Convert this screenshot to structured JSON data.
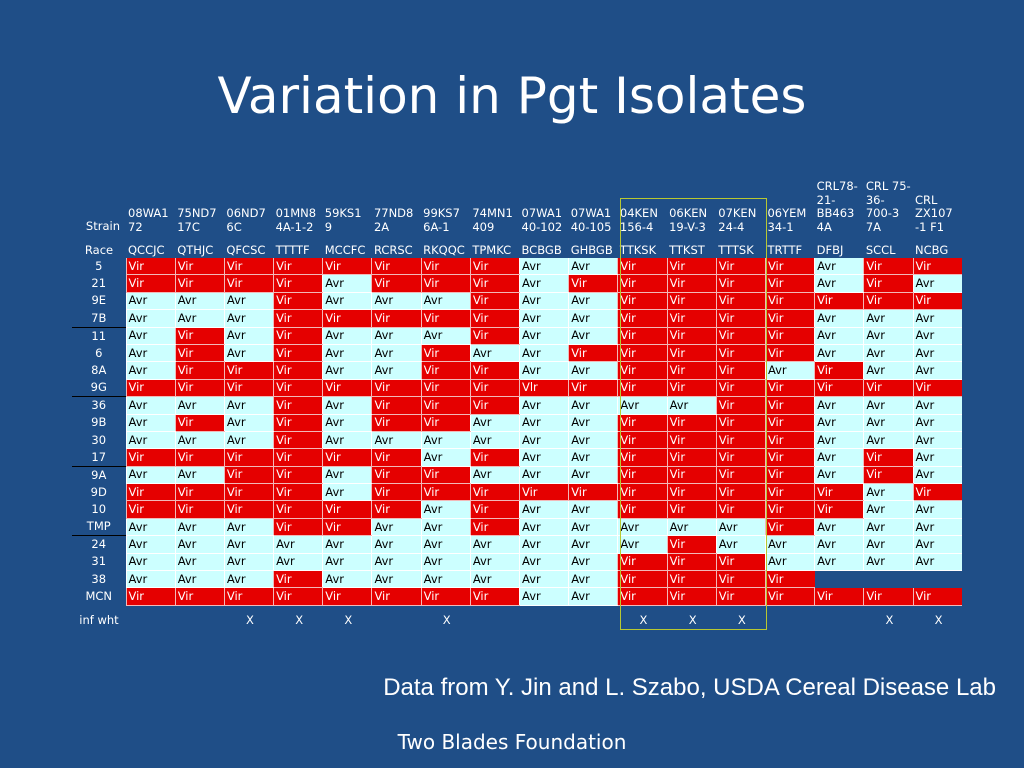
{
  "slide": {
    "title": "Variation in Pgt Isolates",
    "credit": "Data from Y. Jin and L. Szabo, USDA Cereal Disease Lab",
    "footer": "Two Blades Foundation"
  },
  "colors": {
    "background": "#1f4e87",
    "vir": "#e50000",
    "avr": "#ccffff",
    "highlight": "#b8c832"
  },
  "table": {
    "strain_label": "Strain",
    "race_label": "Race",
    "inf_label": "inf wht",
    "strains": [
      "08WA1 72",
      "75ND7 17C",
      "06ND7 6C",
      "01MN8 4A-1-2",
      "59KS1 9",
      "77ND8 2A",
      "99KS7 6A-1",
      "74MN1 409",
      "07WA1 40-102",
      "07WA1 40-105",
      "04KEN 156-4",
      "06KEN 19-V-3",
      "07KEN 24-4",
      "06YEM 34-1",
      "CRL78- 21- BB463 4A",
      "CRL 75-36- 700-3 7A",
      "CRL ZX107 -1 F1"
    ],
    "races": [
      "QCCJC",
      "QTHJC",
      "QFCSC",
      "TTTTF",
      "MCCFC",
      "RCRSC",
      "RKQQC",
      "TPMKC",
      "BCBGB",
      "GHBGB",
      "TTKSK",
      "TTKST",
      "TTTSK",
      "TRTTF",
      "DFBJ",
      "SCCL",
      "NCBG"
    ],
    "rows": [
      {
        "label": "5",
        "sep": false,
        "values": [
          "Vir",
          "Vir",
          "Vir",
          "Vir",
          "Vir",
          "Vir",
          "Vir",
          "Vir",
          "Avr",
          "Avr",
          "Vir",
          "Vir",
          "Vir",
          "Vir",
          "Avr",
          "Vir",
          "Vir"
        ]
      },
      {
        "label": "21",
        "sep": false,
        "values": [
          "Vir",
          "Vir",
          "Vir",
          "Vir",
          "Avr",
          "Vir",
          "Vir",
          "Vir",
          "Avr",
          "Vir",
          "Vir",
          "Vir",
          "Vir",
          "Vir",
          "Avr",
          "Vir",
          "Avr"
        ]
      },
      {
        "label": "9E",
        "sep": false,
        "values": [
          "Avr",
          "Avr",
          "Avr",
          "Vir",
          "Avr",
          "Avr",
          "Avr",
          "Vir",
          "Avr",
          "Avr",
          "Vir",
          "Vir",
          "Vir",
          "Vir",
          "Vir",
          "Vir",
          "Vir"
        ]
      },
      {
        "label": "7B",
        "sep": false,
        "values": [
          "Avr",
          "Avr",
          "Avr",
          "Vir",
          "Vir",
          "Vir",
          "Vir",
          "Vir",
          "Avr",
          "Avr",
          "Vir",
          "Vir",
          "Vir",
          "Vir",
          "Avr",
          "Avr",
          "Avr"
        ]
      },
      {
        "label": "11",
        "sep": true,
        "values": [
          "Avr",
          "Vir",
          "Avr",
          "Vir",
          "Avr",
          "Avr",
          "Avr",
          "Vir",
          "Avr",
          "Avr",
          "Vir",
          "Vir",
          "Vir",
          "Vir",
          "Avr",
          "Avr",
          "Avr"
        ]
      },
      {
        "label": "6",
        "sep": false,
        "values": [
          "Avr",
          "Vir",
          "Avr",
          "Vir",
          "Avr",
          "Avr",
          "Vir",
          "Avr",
          "Avr",
          "Vir",
          "Vir",
          "Vir",
          "Vir",
          "Vir",
          "Avr",
          "Avr",
          "Avr"
        ]
      },
      {
        "label": "8A",
        "sep": false,
        "values": [
          "Avr",
          "Vir",
          "Vir",
          "Vir",
          "Avr",
          "Avr",
          "Vir",
          "Vir",
          "Avr",
          "Avr",
          "Vir",
          "Vir",
          "Vir",
          "Avr",
          "Vir",
          "Avr",
          "Avr"
        ]
      },
      {
        "label": "9G",
        "sep": false,
        "values": [
          "Vir",
          "Vir",
          "Vir",
          "Vir",
          "Vir",
          "Vir",
          "Vir",
          "Vir",
          "Vlr",
          "Vir",
          "Vir",
          "Vir",
          "Vir",
          "Vir",
          "Vir",
          "Vir",
          "Vir"
        ]
      },
      {
        "label": "36",
        "sep": true,
        "values": [
          "Avr",
          "Avr",
          "Avr",
          "Vir",
          "Avr",
          "Vir",
          "Vir",
          "Vir",
          "Avr",
          "Avr",
          "Avr",
          "Avr",
          "Vir",
          "Vir",
          "Avr",
          "Avr",
          "Avr"
        ]
      },
      {
        "label": "9B",
        "sep": false,
        "values": [
          "Avr",
          "Vir",
          "Avr",
          "Vir",
          "Avr",
          "Vir",
          "Vir",
          "Avr",
          "Avr",
          "Avr",
          "Vir",
          "Vir",
          "Vir",
          "Vir",
          "Avr",
          "Avr",
          "Avr"
        ]
      },
      {
        "label": "30",
        "sep": false,
        "values": [
          "Avr",
          "Avr",
          "Avr",
          "Vir",
          "Avr",
          "Avr",
          "Avr",
          "Avr",
          "Avr",
          "Avr",
          "Vir",
          "Vir",
          "Vir",
          "Vir",
          "Avr",
          "Avr",
          "Avr"
        ]
      },
      {
        "label": "17",
        "sep": false,
        "values": [
          "Vir",
          "Vir",
          "Vir",
          "Vir",
          "Vir",
          "Vir",
          "Avr",
          "Vir",
          "Avr",
          "Avr",
          "Vir",
          "Vir",
          "Vir",
          "Vir",
          "Avr",
          "Vir",
          "Avr"
        ]
      },
      {
        "label": "9A",
        "sep": true,
        "values": [
          "Avr",
          "Avr",
          "Vir",
          "Vir",
          "Avr",
          "Vir",
          "Vir",
          "Avr",
          "Avr",
          "Avr",
          "Vir",
          "Vir",
          "Vir",
          "Vir",
          "Avr",
          "Vir",
          "Avr"
        ]
      },
      {
        "label": "9D",
        "sep": false,
        "values": [
          "Vir",
          "Vir",
          "Vir",
          "Vir",
          "Avr",
          "Vir",
          "Vir",
          "Vir",
          "Vir",
          "Vir",
          "Vir",
          "Vir",
          "Vir",
          "Vir",
          "Vir",
          "Avr",
          "Vir"
        ]
      },
      {
        "label": "10",
        "sep": false,
        "values": [
          "Vir",
          "Vir",
          "Vir",
          "Vir",
          "Vir",
          "Vir",
          "Avr",
          "Vir",
          "Avr",
          "Avr",
          "Vir",
          "Vir",
          "Vir",
          "Vir",
          "Vir",
          "Avr",
          "Avr"
        ]
      },
      {
        "label": "TMP",
        "sep": false,
        "values": [
          "Avr",
          "Avr",
          "Avr",
          "Vir",
          "Vir",
          "Avr",
          "Avr",
          "Vir",
          "Avr",
          "Avr",
          "Avr",
          "Avr",
          "Avr",
          "Vir",
          "Avr",
          "Avr",
          "Avr"
        ]
      },
      {
        "label": "24",
        "sep": true,
        "values": [
          "Avr",
          "Avr",
          "Avr",
          "Avr",
          "Avr",
          "Avr",
          "Avr",
          "Avr",
          "Avr",
          "Avr",
          "Avr",
          "Vir",
          "Avr",
          "Avr",
          "Avr",
          "Avr",
          "Avr"
        ]
      },
      {
        "label": "31",
        "sep": false,
        "values": [
          "Avr",
          "Avr",
          "Avr",
          "Avr",
          "Avr",
          "Avr",
          "Avr",
          "Avr",
          "Avr",
          "Avr",
          "Vir",
          "Vir",
          "Vir",
          "Avr",
          "Avr",
          "Avr",
          "Avr"
        ]
      },
      {
        "label": "38",
        "sep": false,
        "values": [
          "Avr",
          "Avr",
          "Avr",
          "Vir",
          "Avr",
          "Avr",
          "Avr",
          "Avr",
          "Avr",
          "Avr",
          "Vir",
          "Vir",
          "Vir",
          "Vir",
          "",
          "",
          ""
        ]
      },
      {
        "label": "MCN",
        "sep": false,
        "values": [
          "Vir",
          "Vir",
          "Vir",
          "Vir",
          "Vir",
          "Vir",
          "Vir",
          "Vir",
          "Avr",
          "Avr",
          "Vir",
          "Vir",
          "Vir",
          "Vir",
          "Vir",
          "Vir",
          "Vir"
        ]
      }
    ],
    "inf_wht": [
      "",
      "",
      "X",
      "X",
      "X",
      "",
      "X",
      "",
      "",
      "",
      "X",
      "X",
      "X",
      "",
      "",
      "X",
      "X"
    ]
  }
}
